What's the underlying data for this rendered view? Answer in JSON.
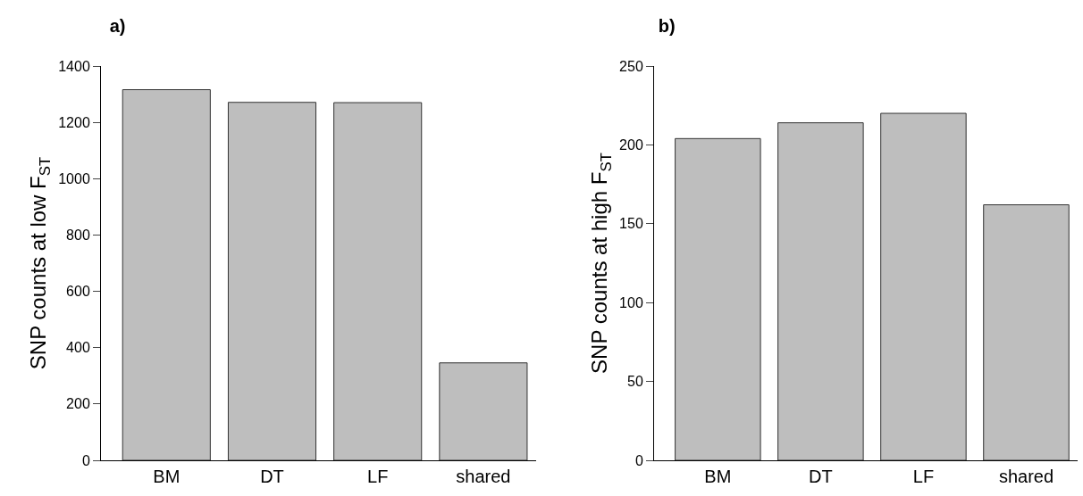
{
  "chart_data": [
    {
      "type": "bar",
      "title": "a)",
      "ylabel": "SNP counts at low F$_{ST}$",
      "categories": [
        "BM",
        "DT",
        "LF",
        "shared"
      ],
      "values": [
        1316,
        1271,
        1270,
        346
      ],
      "color": "#bebebe",
      "ylim": [
        0,
        1400
      ],
      "yticks": [
        0,
        200,
        400,
        600,
        800,
        1000,
        1200,
        1400
      ]
    },
    {
      "type": "bar",
      "title": "b)",
      "ylabel": "SNP counts at high F$_{ST}$",
      "categories": [
        "BM",
        "DT",
        "LF",
        "shared"
      ],
      "values": [
        204,
        214,
        220,
        162
      ],
      "color": "#bebebe",
      "ylim": [
        0,
        250
      ],
      "yticks": [
        0,
        50,
        100,
        150,
        200,
        250
      ]
    }
  ]
}
